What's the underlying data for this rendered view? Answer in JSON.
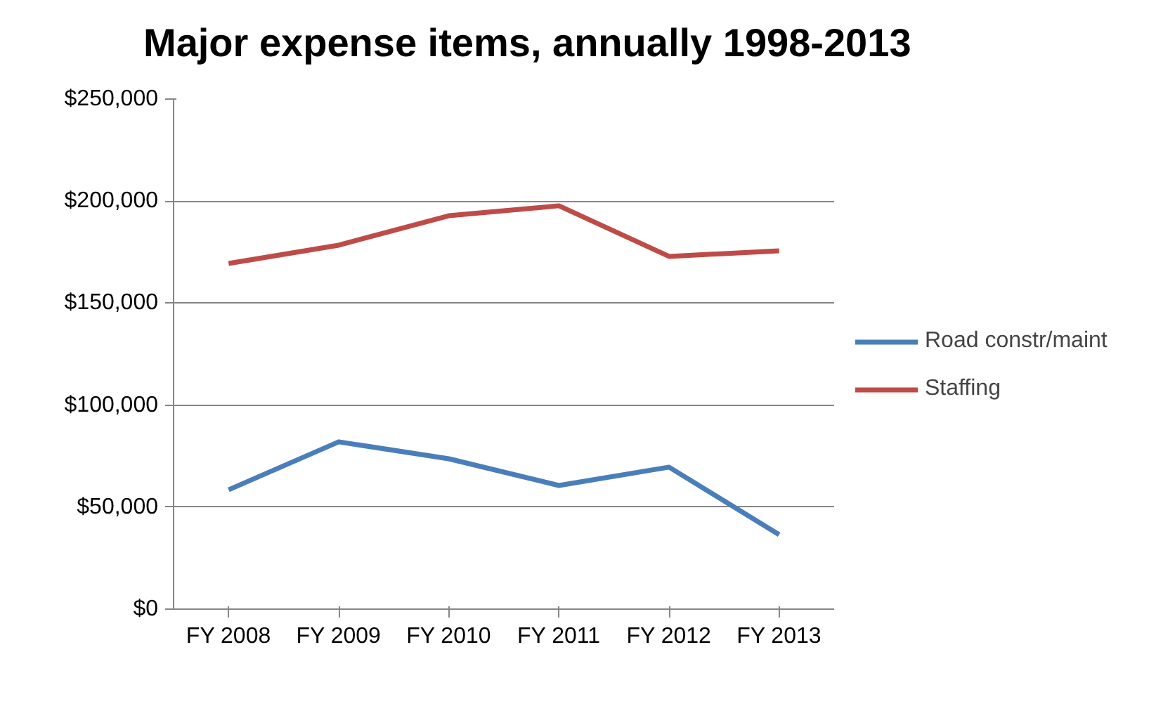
{
  "chart_data": {
    "type": "line",
    "title": "Major expense items,  annually 1998-2013",
    "categories": [
      "FY 2008",
      "FY 2009",
      "FY 2010",
      "FY 2011",
      "FY 2012",
      "FY 2013"
    ],
    "series": [
      {
        "name": "Road constr/maint",
        "color": "#4a7ebb",
        "values": [
          58500,
          82000,
          73700,
          60600,
          69600,
          36500
        ]
      },
      {
        "name": "Staffing",
        "color": "#be4b48",
        "values": [
          169400,
          178400,
          192800,
          197700,
          172900,
          175600
        ]
      }
    ],
    "ylim": [
      0,
      250000
    ],
    "yticks": [
      {
        "value": 0,
        "label": "$0"
      },
      {
        "value": 50000,
        "label": "$50,000"
      },
      {
        "value": 100000,
        "label": "$100,000"
      },
      {
        "value": 150000,
        "label": "$150,000"
      },
      {
        "value": 200000,
        "label": "$200,000"
      },
      {
        "value": 250000,
        "label": "$250,000"
      }
    ],
    "grid": "y",
    "legend": "right",
    "marker": "none",
    "line_style": "solid"
  }
}
